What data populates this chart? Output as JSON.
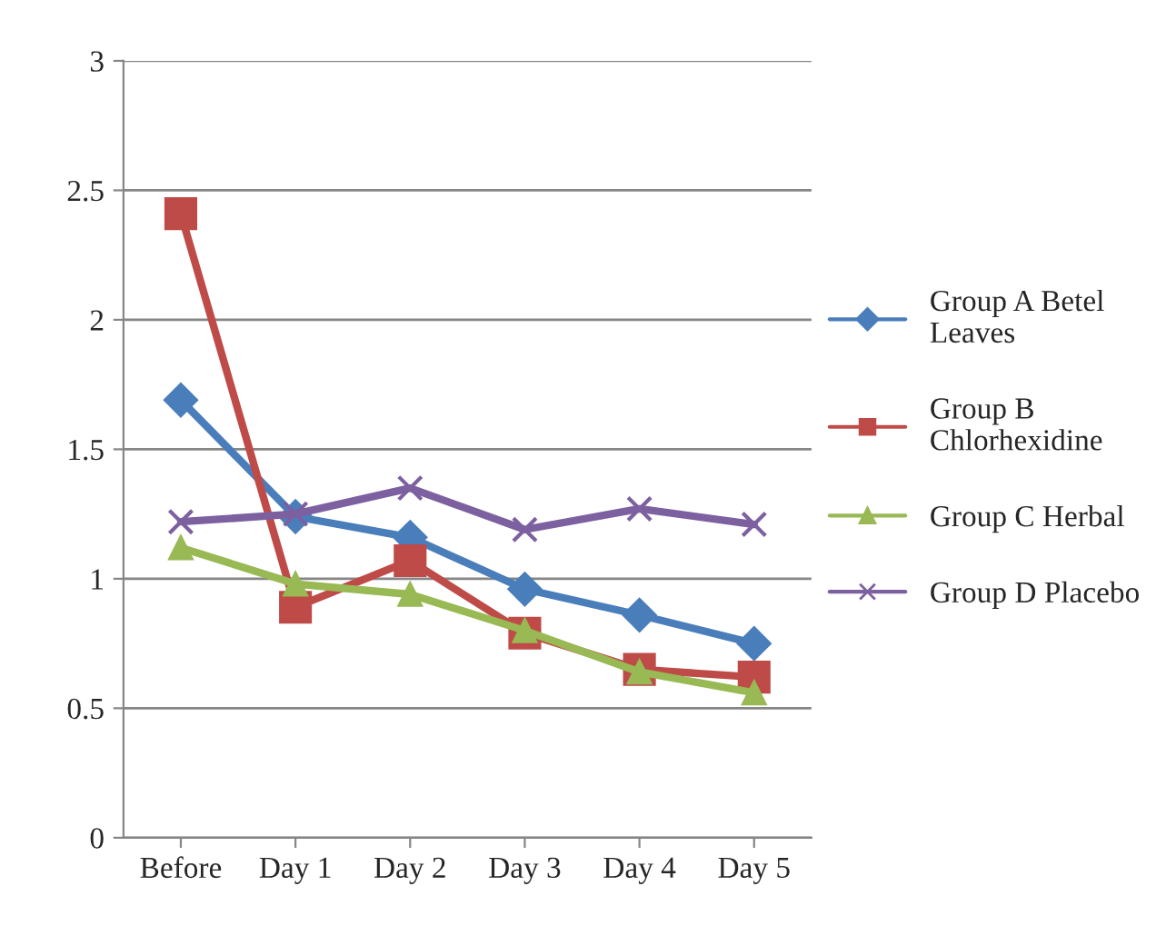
{
  "chart_data": {
    "type": "line",
    "categories": [
      "Before",
      "Day 1",
      "Day 2",
      "Day 3",
      "Day 4",
      "Day 5"
    ],
    "series": [
      {
        "name": "Group A Betel Leaves",
        "color": "#4a7ebb",
        "marker": "diamond",
        "values": [
          1.69,
          1.24,
          1.16,
          0.96,
          0.86,
          0.75
        ]
      },
      {
        "name": "Group B Chlorhexidine",
        "color": "#be4b48",
        "marker": "square",
        "values": [
          2.41,
          0.89,
          1.07,
          0.79,
          0.65,
          0.62
        ]
      },
      {
        "name": "Group C Herbal",
        "color": "#98b954",
        "marker": "triangle",
        "values": [
          1.12,
          0.98,
          0.94,
          0.8,
          0.64,
          0.56
        ]
      },
      {
        "name": "Group D Placebo",
        "color": "#7d60a0",
        "marker": "cross",
        "values": [
          1.22,
          1.25,
          1.35,
          1.19,
          1.27,
          1.21
        ]
      }
    ],
    "ylim": [
      0,
      3
    ],
    "yticks": [
      0,
      0.5,
      1,
      1.5,
      2,
      2.5,
      3
    ],
    "grid": "y",
    "legend": "right"
  }
}
